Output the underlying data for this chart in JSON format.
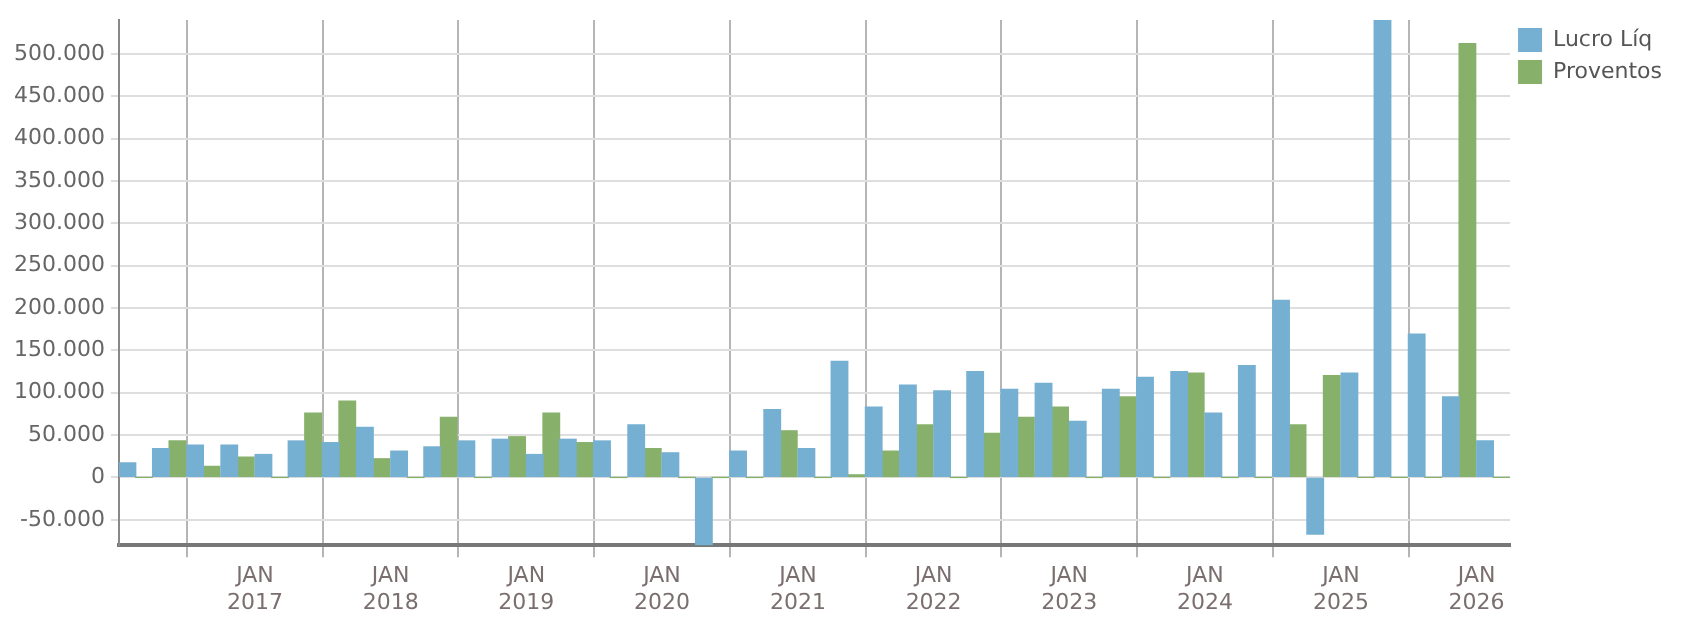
{
  "chart_data": {
    "type": "bar",
    "x": [
      "2016-02-15",
      "2016-05-15",
      "2016-08-15",
      "2016-11-15",
      "2017-02-15",
      "2017-05-15",
      "2017-08-15",
      "2017-11-15",
      "2018-02-15",
      "2018-05-15",
      "2018-08-15",
      "2018-11-15",
      "2019-02-15",
      "2019-05-15",
      "2019-08-15",
      "2019-11-15",
      "2020-02-15",
      "2020-05-15",
      "2020-08-15",
      "2020-11-15",
      "2021-02-15",
      "2021-05-15",
      "2021-08-15",
      "2021-11-15",
      "2022-02-15",
      "2022-05-15",
      "2022-08-15",
      "2022-11-15",
      "2023-02-15",
      "2023-05-15",
      "2023-08-15",
      "2023-11-15",
      "2024-02-15",
      "2024-05-15",
      "2024-08-15",
      "2024-11-15",
      "2025-02-15",
      "2025-05-15",
      "2025-08-15",
      "2025-11-15",
      "2026-02-15"
    ],
    "series": [
      {
        "name": "Lucro Líq",
        "color": "#75b0d2",
        "values": [
          17000,
          34000,
          38000,
          38000,
          27000,
          43000,
          41000,
          59000,
          31000,
          36000,
          43000,
          45000,
          27000,
          45000,
          43000,
          62000,
          29000,
          -80000,
          31000,
          80000,
          34000,
          137000,
          83000,
          109000,
          102000,
          125000,
          104000,
          111000,
          66000,
          104000,
          118000,
          125000,
          76000,
          132000,
          209000,
          -67000,
          123000,
          540000,
          169000,
          95000,
          43000
        ]
      },
      {
        "name": "Proventos",
        "color": "#87b06a",
        "values": [
          0,
          43000,
          13000,
          24000,
          0,
          76000,
          90000,
          22000,
          0,
          71000,
          0,
          48000,
          76000,
          41000,
          0,
          34000,
          0,
          0,
          0,
          55000,
          0,
          3000,
          31000,
          62000,
          0,
          52000,
          71000,
          83000,
          0,
          95000,
          0,
          123000,
          0,
          0,
          62000,
          120000,
          0,
          0,
          0,
          512000,
          0
        ]
      }
    ],
    "xlim": [
      "2016-01-01",
      "2026-04-01"
    ],
    "xticks": [
      {
        "value": "2017-01-01",
        "label": "JAN\n2017"
      },
      {
        "value": "2018-01-01",
        "label": "JAN\n2018"
      },
      {
        "value": "2019-01-01",
        "label": "JAN\n2019"
      },
      {
        "value": "2020-01-01",
        "label": "JAN\n2020"
      },
      {
        "value": "2021-01-01",
        "label": "JAN\n2021"
      },
      {
        "value": "2022-01-01",
        "label": "JAN\n2022"
      },
      {
        "value": "2023-01-01",
        "label": "JAN\n2023"
      },
      {
        "value": "2024-01-01",
        "label": "JAN\n2024"
      },
      {
        "value": "2025-01-01",
        "label": "JAN\n2025"
      },
      {
        "value": "2026-01-01",
        "label": "JAN\n2026"
      }
    ],
    "ylim": [
      -80000,
      540000
    ],
    "yticks": [
      {
        "value": -50000,
        "label": "-50.000"
      },
      0,
      {
        "value": 50000,
        "label": "50.000"
      },
      {
        "value": 100000,
        "label": "100.000"
      },
      {
        "value": 150000,
        "label": "150.000"
      },
      {
        "value": 200000,
        "label": "200.000"
      },
      {
        "value": 250000,
        "label": "250.000"
      },
      {
        "value": 300000,
        "label": "300.000"
      },
      {
        "value": 350000,
        "label": "350.000"
      },
      {
        "value": 400000,
        "label": "400.000"
      },
      {
        "value": 450000,
        "label": "450.000"
      },
      {
        "value": 500000,
        "label": "500.000"
      }
    ],
    "grid": true,
    "legend": "top right"
  }
}
